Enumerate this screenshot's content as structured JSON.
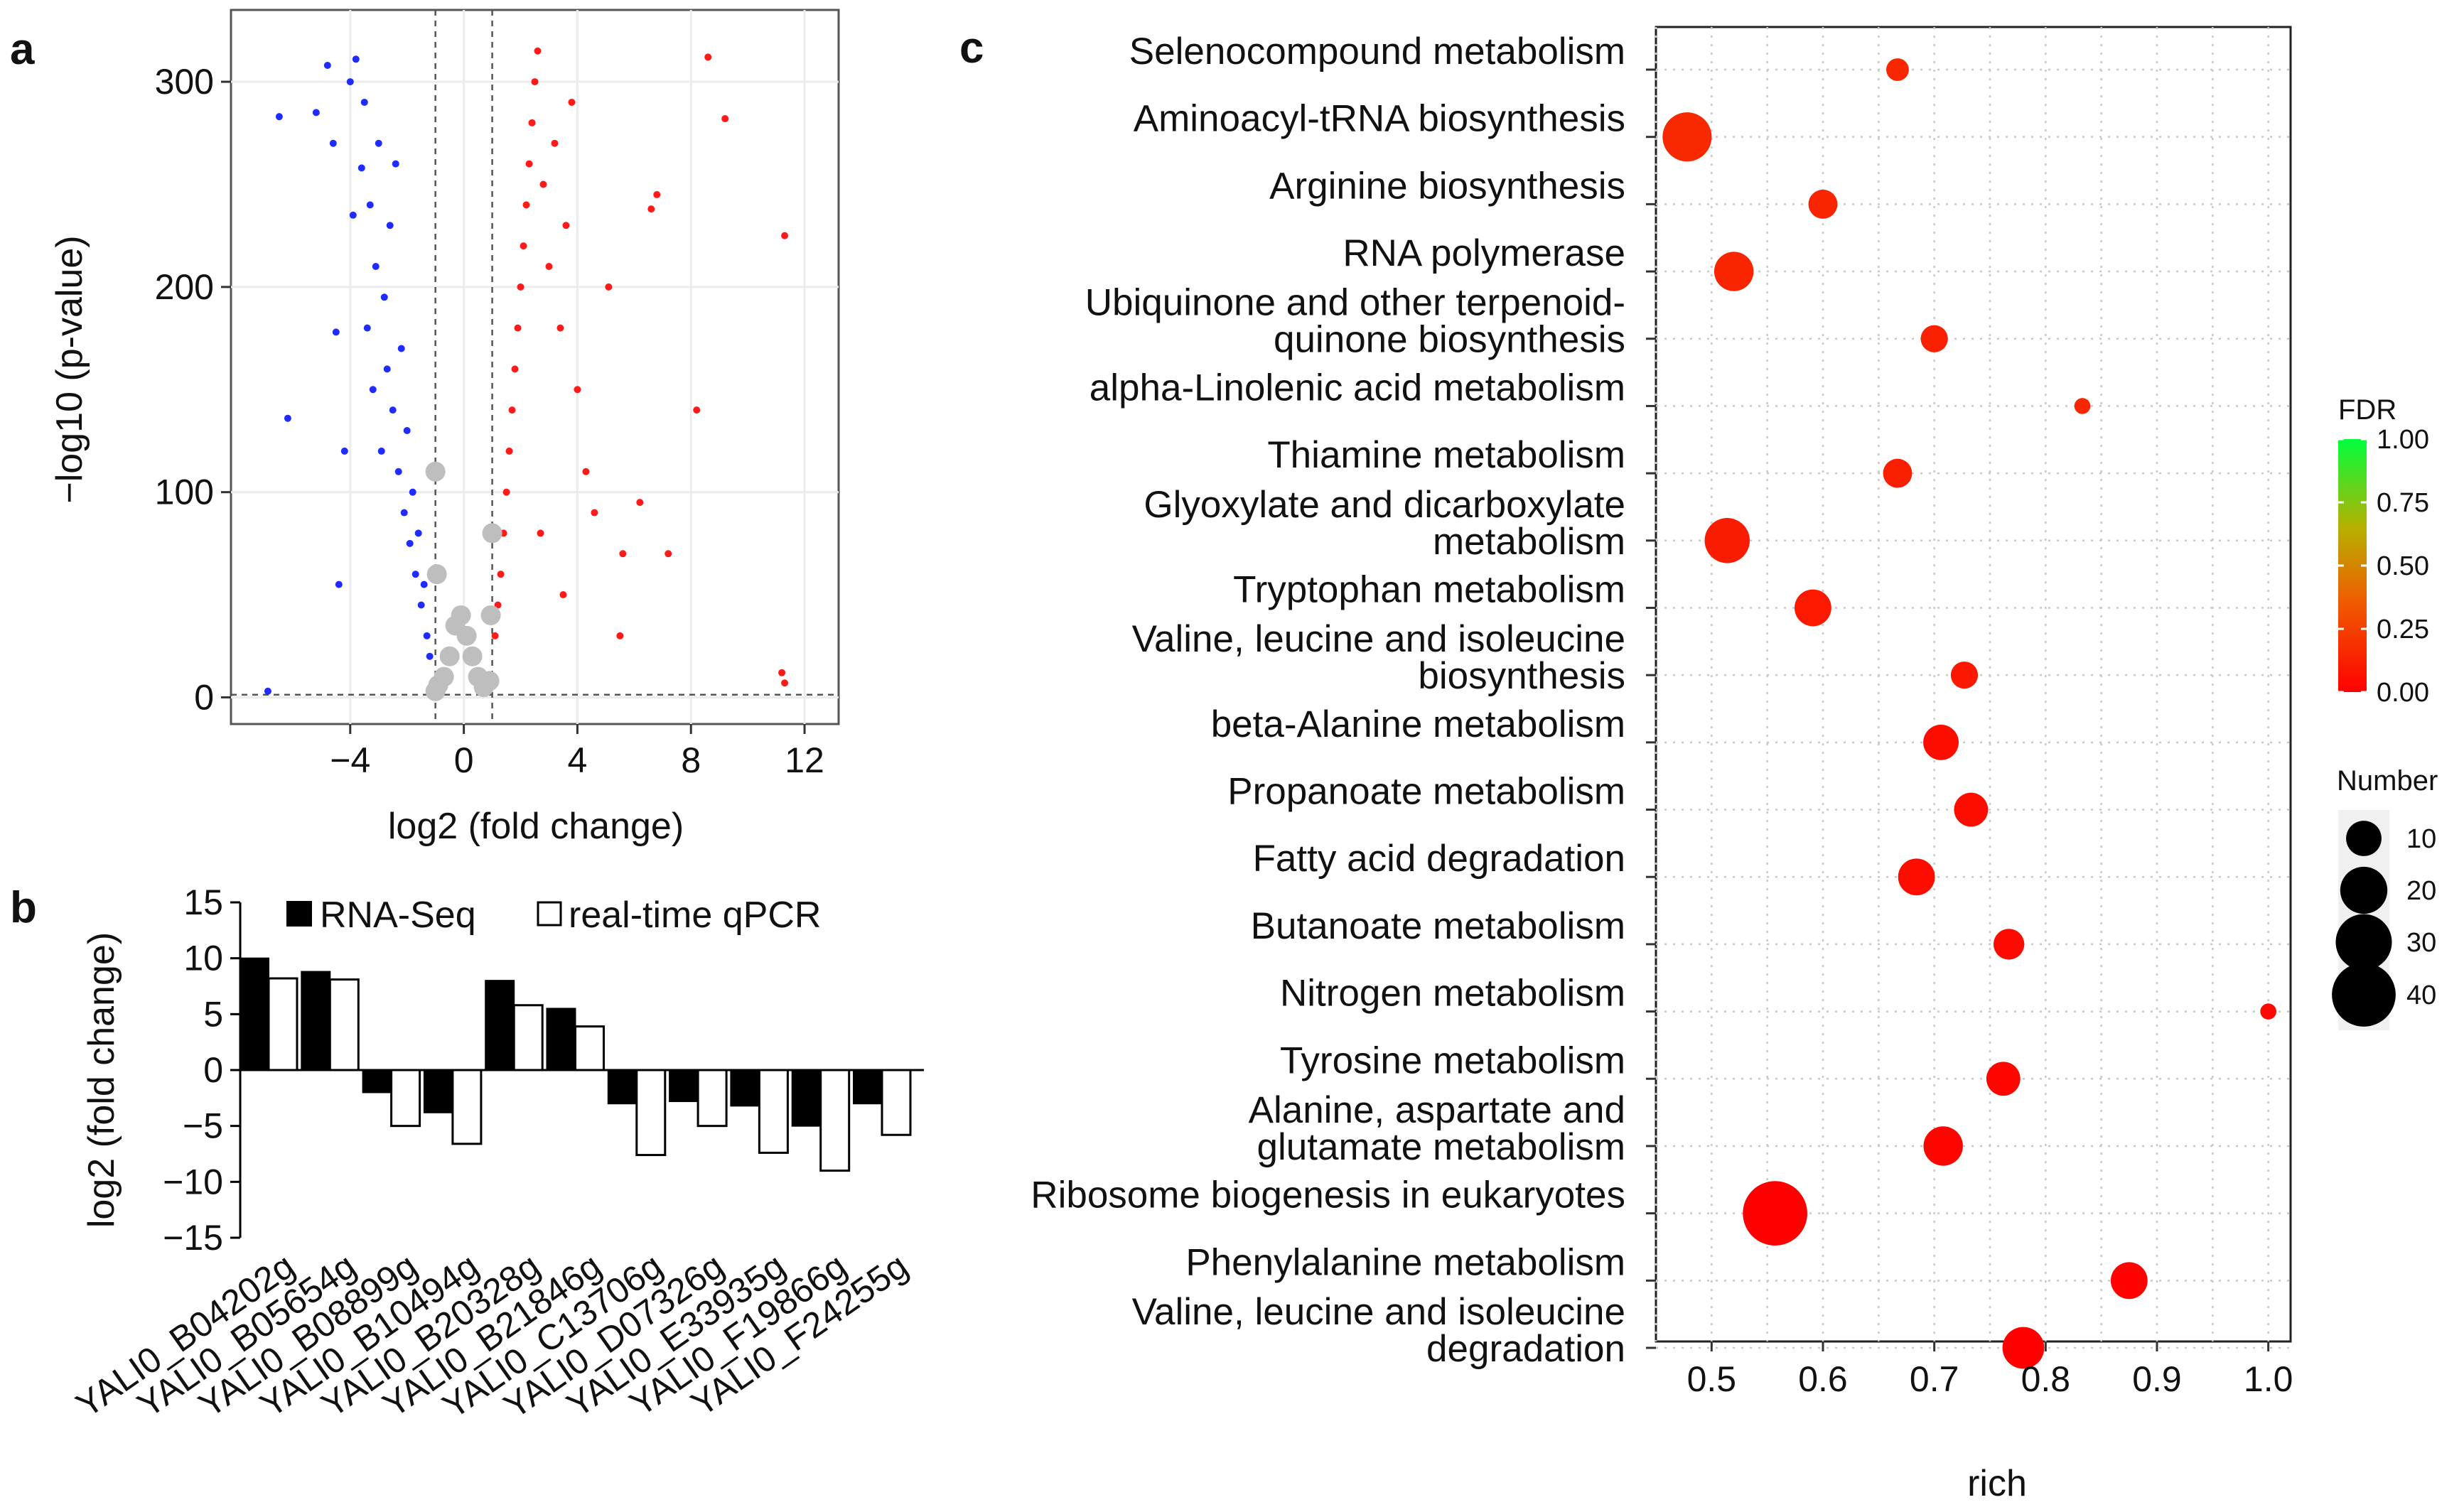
{
  "panels": {
    "a": "a",
    "b": "b",
    "c": "c"
  },
  "colors": {
    "up": "#ff1a1a",
    "down": "#1f2bff",
    "ns": "#bebebe",
    "bar_rna": "#000000",
    "bar_qpcr": "#ffffff"
  },
  "chart_data": [
    {
      "id": "a",
      "type": "scatter",
      "title": "",
      "xlabel": "log2 (fold change)",
      "ylabel": "−log10 (p-value)",
      "xlim": [
        -8.2,
        13.2
      ],
      "ylim": [
        -13,
        335
      ],
      "xticks": [
        -4,
        0,
        4,
        8,
        12
      ],
      "xtick_labels": [
        "−4",
        "0",
        "4",
        "8",
        "12"
      ],
      "yticks": [
        0,
        100,
        200,
        300
      ],
      "ytick_labels": [
        "0",
        "100",
        "200",
        "300"
      ],
      "thresholds": {
        "log2fc": [
          -1,
          1
        ],
        "pvalue": 1.3
      },
      "series": [
        {
          "name": "down-regulated",
          "color": "#1f2bff",
          "points": [
            [
              -6.5,
              283
            ],
            [
              -6.2,
              136
            ],
            [
              -5.2,
              285
            ],
            [
              -4.8,
              308
            ],
            [
              -4.6,
              270
            ],
            [
              -4.5,
              178
            ],
            [
              -4.4,
              55
            ],
            [
              -4.2,
              120
            ],
            [
              -4.0,
              300
            ],
            [
              -3.9,
              235
            ],
            [
              -3.8,
              311
            ],
            [
              -3.6,
              258
            ],
            [
              -3.5,
              290
            ],
            [
              -3.4,
              180
            ],
            [
              -3.3,
              240
            ],
            [
              -3.2,
              150
            ],
            [
              -3.1,
              210
            ],
            [
              -3.0,
              270
            ],
            [
              -2.9,
              120
            ],
            [
              -2.8,
              195
            ],
            [
              -2.7,
              160
            ],
            [
              -2.6,
              230
            ],
            [
              -2.5,
              140
            ],
            [
              -2.4,
              260
            ],
            [
              -2.3,
              110
            ],
            [
              -2.2,
              170
            ],
            [
              -2.1,
              90
            ],
            [
              -2.0,
              130
            ],
            [
              -1.9,
              75
            ],
            [
              -1.8,
              100
            ],
            [
              -1.7,
              60
            ],
            [
              -1.6,
              80
            ],
            [
              -1.5,
              45
            ],
            [
              -1.4,
              55
            ],
            [
              -1.3,
              30
            ],
            [
              -1.2,
              20
            ],
            [
              -6.9,
              3
            ]
          ]
        },
        {
          "name": "up-regulated",
          "color": "#ff1a1a",
          "points": [
            [
              1.1,
              30
            ],
            [
              1.2,
              45
            ],
            [
              1.3,
              60
            ],
            [
              1.4,
              80
            ],
            [
              1.5,
              100
            ],
            [
              1.6,
              120
            ],
            [
              1.7,
              140
            ],
            [
              1.8,
              160
            ],
            [
              1.9,
              180
            ],
            [
              2.0,
              200
            ],
            [
              2.1,
              220
            ],
            [
              2.2,
              240
            ],
            [
              2.3,
              260
            ],
            [
              2.4,
              280
            ],
            [
              2.5,
              300
            ],
            [
              2.6,
              315
            ],
            [
              2.8,
              250
            ],
            [
              3.0,
              210
            ],
            [
              3.2,
              270
            ],
            [
              3.4,
              180
            ],
            [
              3.6,
              230
            ],
            [
              3.8,
              290
            ],
            [
              4.0,
              150
            ],
            [
              4.3,
              110
            ],
            [
              4.6,
              90
            ],
            [
              5.1,
              200
            ],
            [
              5.6,
              70
            ],
            [
              6.2,
              95
            ],
            [
              6.6,
              238
            ],
            [
              6.8,
              245
            ],
            [
              7.2,
              70
            ],
            [
              8.2,
              140
            ],
            [
              8.6,
              312
            ],
            [
              9.2,
              282
            ],
            [
              11.3,
              225
            ],
            [
              11.2,
              12
            ],
            [
              11.3,
              7
            ],
            [
              5.5,
              30
            ],
            [
              3.5,
              50
            ],
            [
              2.7,
              80
            ]
          ]
        },
        {
          "name": "not significant",
          "color": "#bebebe",
          "points": [
            [
              -1.0,
              3
            ],
            [
              -0.9,
              6
            ],
            [
              -0.7,
              10
            ],
            [
              -0.5,
              20
            ],
            [
              -0.3,
              35
            ],
            [
              -0.1,
              40
            ],
            [
              0.1,
              30
            ],
            [
              0.3,
              20
            ],
            [
              0.5,
              10
            ],
            [
              0.7,
              5
            ],
            [
              0.9,
              8
            ],
            [
              0.95,
              40
            ],
            [
              1.0,
              80
            ],
            [
              -0.95,
              60
            ],
            [
              -1.0,
              110
            ]
          ]
        }
      ]
    },
    {
      "id": "b",
      "type": "bar",
      "ylabel": "log2 (fold change)",
      "ylim": [
        -15,
        15
      ],
      "yticks": [
        15,
        10,
        5,
        0,
        -5,
        -10,
        -15
      ],
      "ytick_labels": [
        "15",
        "10",
        "5",
        "0",
        "−5",
        "−10",
        "−15"
      ],
      "categories": [
        "YALI0_B04202g",
        "YALI0_B05654g",
        "YALI0_B08899g",
        "YALI0_B10494g",
        "YALI0_B20328g",
        "YALI0_B21846g",
        "YALI0_C13706g",
        "YALI0_D07326g",
        "YALI0_E33935g",
        "YALI0_F19866g",
        "YALI0_F24255g"
      ],
      "series": [
        {
          "name": "RNA-Seq",
          "values": [
            10.0,
            8.8,
            -2.0,
            -3.8,
            8.0,
            5.5,
            -3.0,
            -2.8,
            -3.2,
            -5.0,
            -3.0
          ]
        },
        {
          "name": "real-time qPCR",
          "values": [
            8.2,
            8.1,
            -5.0,
            -6.6,
            5.8,
            3.9,
            -7.6,
            -5.0,
            -7.4,
            -9.0,
            -5.8
          ]
        }
      ]
    },
    {
      "id": "c",
      "type": "scatter",
      "xlabel": "rich",
      "ylabel": "",
      "xlim": [
        0.45,
        1.02
      ],
      "xticks": [
        0.5,
        0.6,
        0.7,
        0.8,
        0.9,
        1.0
      ],
      "xtick_labels": [
        "0.5",
        "0.6",
        "0.7",
        "0.8",
        "0.9",
        "1.0"
      ],
      "categories": [
        {
          "lines": [
            "Selenocompound metabolism"
          ],
          "rich": 0.667,
          "number": 3,
          "fdr": 0.15
        },
        {
          "lines": [
            "Aminoacyl-tRNA biosynthesis"
          ],
          "rich": 0.478,
          "number": 22,
          "fdr": 0.16
        },
        {
          "lines": [
            "Arginine biosynthesis"
          ],
          "rich": 0.6,
          "number": 6,
          "fdr": 0.14
        },
        {
          "lines": [
            "RNA polymerase"
          ],
          "rich": 0.52,
          "number": 13,
          "fdr": 0.14
        },
        {
          "lines": [
            "Ubiquinone and other terpenoid-",
            "quinone biosynthesis"
          ],
          "rich": 0.7,
          "number": 5,
          "fdr": 0.13
        },
        {
          "lines": [
            "alpha-Linolenic acid metabolism"
          ],
          "rich": 0.833,
          "number": 1,
          "fdr": 0.15
        },
        {
          "lines": [
            "Thiamine metabolism"
          ],
          "rich": 0.667,
          "number": 6,
          "fdr": 0.12
        },
        {
          "lines": [
            "Glyoxylate and dicarboxylate",
            "metabolism"
          ],
          "rich": 0.514,
          "number": 18,
          "fdr": 0.11
        },
        {
          "lines": [
            "Tryptophan metabolism"
          ],
          "rich": 0.591,
          "number": 11,
          "fdr": 0.1
        },
        {
          "lines": [
            "Valine, leucine and isoleucine",
            "biosynthesis"
          ],
          "rich": 0.727,
          "number": 5,
          "fdr": 0.09
        },
        {
          "lines": [
            "beta-Alanine metabolism"
          ],
          "rich": 0.706,
          "number": 10,
          "fdr": 0.05
        },
        {
          "lines": [
            "Propanoate metabolism"
          ],
          "rich": 0.733,
          "number": 9,
          "fdr": 0.05
        },
        {
          "lines": [
            "Fatty acid degradation"
          ],
          "rich": 0.684,
          "number": 11,
          "fdr": 0.05
        },
        {
          "lines": [
            "Butanoate metabolism"
          ],
          "rich": 0.767,
          "number": 7,
          "fdr": 0.04
        },
        {
          "lines": [
            "Nitrogen metabolism"
          ],
          "rich": 1.0,
          "number": 1,
          "fdr": 0.03
        },
        {
          "lines": [
            "Tyrosine metabolism"
          ],
          "rich": 0.762,
          "number": 9,
          "fdr": 0.02
        },
        {
          "lines": [
            "Alanine, aspartate and",
            "glutamate metabolism"
          ],
          "rich": 0.708,
          "number": 13,
          "fdr": 0.02
        },
        {
          "lines": [
            "Ribosome biogenesis in eukaryotes"
          ],
          "rich": 0.557,
          "number": 41,
          "fdr": 0.0
        },
        {
          "lines": [
            "Phenylalanine metabolism"
          ],
          "rich": 0.875,
          "number": 11,
          "fdr": 0.01
        },
        {
          "lines": [
            "Valine, leucine and isoleucine",
            "degradation"
          ],
          "rich": 0.78,
          "number": 15,
          "fdr": 0.0
        }
      ],
      "legend": {
        "fdr_title": "FDR",
        "fdr_ticks": [
          1.0,
          0.75,
          0.5,
          0.25,
          0.0
        ],
        "fdr_tick_labels": [
          "1.00",
          "0.75",
          "0.50",
          "0.25",
          "0.00"
        ],
        "number_title": "Number",
        "number_values": [
          10,
          20,
          30,
          40
        ],
        "number_labels": [
          "10",
          "20",
          "30",
          "40"
        ]
      }
    }
  ]
}
